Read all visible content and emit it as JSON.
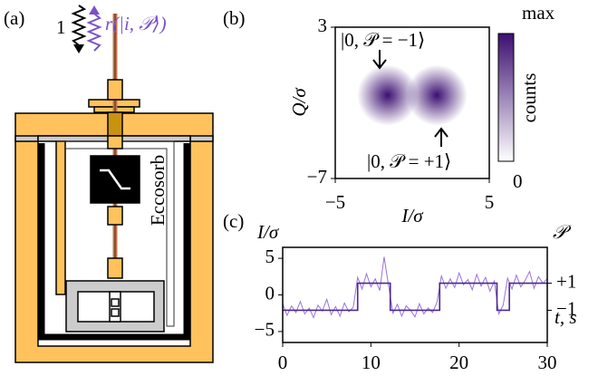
{
  "panel_labels": [
    "(a)",
    "(b)",
    "(c)"
  ],
  "diagram": {
    "input_label": "1",
    "reflected_label": "r(|i, 𝒫⟩)",
    "absorber_label": "Eccosorb"
  },
  "chart_data": [
    {
      "type": "heatmap",
      "xlabel": "I/σ",
      "ylabel": "Q/σ",
      "xlim": [
        -5,
        5
      ],
      "ylim": [
        -7,
        3
      ],
      "xticks": [
        {
          "value": -5,
          "label": "−5"
        },
        5
      ],
      "yticks": [
        {
          "value": -7,
          "label": "−7"
        },
        3
      ],
      "blobs": [
        {
          "I": -1.6,
          "Q": -1.5,
          "sigma": 0.9
        },
        {
          "I": 1.6,
          "Q": -1.5,
          "sigma": 0.9
        }
      ],
      "colormap": [
        "#ffffff",
        "#3b0f70"
      ],
      "colorbar_label": "counts",
      "colorbar_ticks": [
        "0",
        "max"
      ],
      "annotations": [
        "|0, 𝒫 = −1⟩",
        "|0, 𝒫 = +1⟩"
      ]
    },
    {
      "type": "line",
      "ylabel": "I/σ",
      "y2label": "𝒫",
      "xlabel": "t, s",
      "xlim": [
        0,
        30
      ],
      "xticks": [
        0,
        10,
        20,
        30
      ],
      "ylim": [
        -6.5,
        6.5
      ],
      "yticks": [
        {
          "value": -5,
          "label": "−5"
        },
        0,
        5
      ],
      "y2lim": [
        -3.38,
        3.65
      ],
      "y2ticks": [
        {
          "value": -1,
          "label": "−1"
        },
        {
          "value": 1,
          "label": "+1"
        }
      ],
      "series": [
        {
          "color": "#9b72e0",
          "x": [
            0,
            0.5,
            1,
            1.5,
            2,
            2.5,
            3,
            3.5,
            4,
            4.5,
            5,
            5.5,
            6,
            6.5,
            7,
            7.5,
            8,
            8.5,
            9,
            9.5,
            10,
            10.5,
            11,
            11.5,
            12,
            12.5,
            13,
            13.5,
            14,
            14.5,
            15,
            15.5,
            16,
            16.5,
            17,
            17.5,
            18,
            18.5,
            19,
            19.5,
            20,
            20.5,
            21,
            21.5,
            22,
            22.5,
            23,
            23.5,
            24,
            24.5,
            25,
            25.5,
            26,
            26.5,
            27,
            27.5,
            28,
            28.5,
            29,
            29.5,
            30
          ],
          "values": [
            -1.2,
            -2.8,
            -1.5,
            -2.4,
            -0.9,
            -2.6,
            -1.8,
            -3.1,
            -1.4,
            -2.2,
            -0.6,
            -2.7,
            -1.6,
            -2.9,
            -1.1,
            -2.3,
            -1.7,
            2.4,
            0.8,
            2.9,
            1.1,
            2.2,
            0.6,
            5.2,
            1.3,
            -2.5,
            -1.3,
            -2.9,
            -1.5,
            -2.1,
            -3.0,
            -1.2,
            -2.6,
            -1.8,
            -2.4,
            -1.0,
            2.6,
            0.9,
            2.2,
            1.0,
            3.0,
            1.4,
            2.1,
            0.7,
            2.8,
            1.2,
            2.4,
            0.5,
            1.9,
            -2.6,
            -1.4,
            2.3,
            0.8,
            2.7,
            1.1,
            2.0,
            3.2,
            0.9,
            2.5,
            1.6,
            2.2
          ]
        },
        {
          "color": "#4b2a8a",
          "axis": "y2",
          "x": [
            0,
            8.5,
            8.5,
            12.2,
            12.2,
            17.8,
            17.8,
            24.3,
            24.3,
            25.7,
            25.7,
            30
          ],
          "values": [
            -1,
            -1,
            1,
            1,
            -1,
            -1,
            1,
            1,
            -1,
            -1,
            1,
            1
          ]
        }
      ]
    }
  ]
}
